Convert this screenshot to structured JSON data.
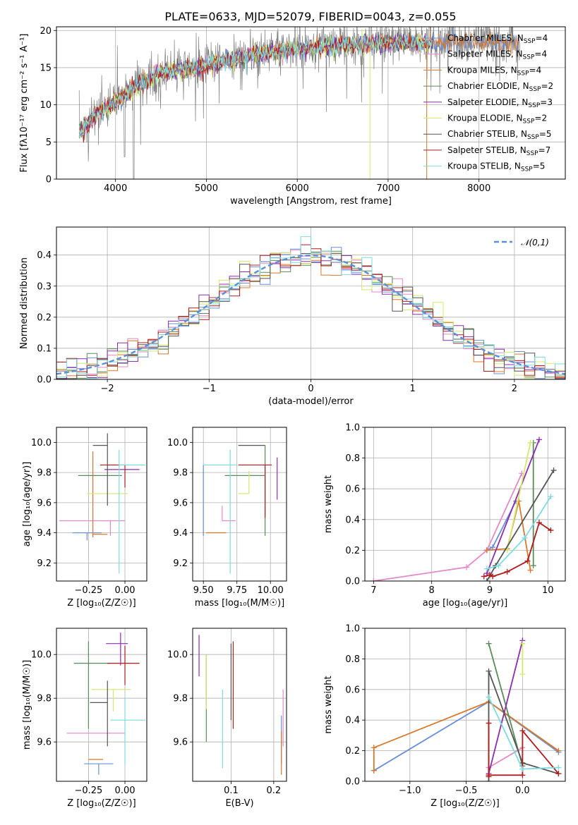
{
  "title": "PLATE=0633, MJD=52079, FIBERID=0043, z=0.055",
  "series_names": [
    "Chabrier MILES",
    "Salpeter MILES",
    "Kroupa MILES",
    "Chabrier ELODIE",
    "Salpeter ELODIE",
    "Kroupa ELODIE",
    "Chabrier STELIB",
    "Salpeter STELIB",
    "Kroupa STELIB"
  ],
  "n_ssp": [
    4,
    4,
    4,
    2,
    3,
    2,
    5,
    7,
    5
  ],
  "n_ssp_prefix": "N",
  "n_ssp_sub": "SSP",
  "colors": [
    "#6a8fd6",
    "#e58ac4",
    "#d9782b",
    "#5a8c5a",
    "#8c2cb0",
    "#d4e86a",
    "#555555",
    "#b01c1c",
    "#7ddbe0"
  ],
  "chart_data": [
    {
      "type": "line",
      "id": "spectrum",
      "xlabel": "wavelength [Angstrom, rest frame]",
      "ylabel": "Flux [fλ10⁻¹⁷ erg cm⁻² s⁻¹ A⁻¹]",
      "xlim": [
        3350,
        8950
      ],
      "ylim": [
        0,
        20.5
      ],
      "xticks": [
        4000,
        5000,
        6000,
        7000,
        8000
      ],
      "yticks": [
        0,
        5,
        10,
        15,
        20
      ],
      "x_range": [
        3600,
        8450
      ],
      "continuum": {
        "x": [
          3600,
          3800,
          4000,
          4200,
          4500,
          5000,
          5500,
          6000,
          6500,
          7000,
          7500,
          8000,
          8450
        ],
        "y": [
          6.5,
          9.0,
          10.5,
          12.5,
          14.5,
          15.5,
          16.8,
          17.7,
          18.2,
          18.5,
          18.5,
          18.6,
          18.7
        ]
      }
    },
    {
      "type": "step",
      "id": "residuals",
      "xlabel": "(data-model)/error",
      "ylabel": "Normed distribution",
      "xlim": [
        -2.5,
        2.5
      ],
      "ylim": [
        0,
        0.49
      ],
      "xticks": [
        -2,
        -1,
        0,
        1,
        2
      ],
      "yticks": [
        0.0,
        0.1,
        0.2,
        0.3,
        0.4
      ],
      "bins": {
        "start": -2.5,
        "width": 0.1
      },
      "legend": "𝒩(0,1)",
      "gaussian_color": "#5b8fd8"
    },
    {
      "type": "errorbar",
      "id": "age-vs-Z",
      "xlabel": "Z [log₁₀(Z/Z☉)]",
      "ylabel": "age  [log₁₀(age/yr)]",
      "xlim": [
        -0.47,
        0.15
      ],
      "ylim": [
        9.08,
        10.1
      ],
      "xticks": [
        -0.25,
        0.0
      ],
      "yticks": [
        9.2,
        9.4,
        9.6,
        9.8,
        10.0
      ],
      "points": [
        {
          "x": -0.26,
          "y": 9.4,
          "xerr": [
            0.1,
            0.1
          ],
          "yerr": [
            0.05,
            0.0
          ]
        },
        {
          "x": -0.1,
          "y": 9.48,
          "xerr": [
            0.35,
            0.1
          ],
          "yerr": [
            0.1,
            0.0
          ]
        },
        {
          "x": -0.22,
          "y": 9.39,
          "xerr": [
            0.0,
            0.1
          ],
          "yerr": [
            0.02,
            0.55
          ]
        },
        {
          "x": -0.22,
          "y": 9.78,
          "xerr": [
            0.1,
            0.2
          ],
          "yerr": [
            0.0,
            0.0
          ]
        },
        {
          "x": -0.02,
          "y": 9.82,
          "xerr": [
            0.12,
            0.12
          ],
          "yerr": [
            0.0,
            0.0
          ]
        },
        {
          "x": -0.08,
          "y": 9.66,
          "xerr": [
            0.18,
            0.1
          ],
          "yerr": [
            0.0,
            0.0
          ]
        },
        {
          "x": -0.12,
          "y": 9.98,
          "xerr": [
            0.1,
            0.0
          ],
          "yerr": [
            0.4,
            0.08
          ]
        },
        {
          "x": 0.0,
          "y": 9.85,
          "xerr": [
            0.17,
            0.0
          ],
          "yerr": [
            0.15,
            0.0
          ]
        },
        {
          "x": -0.04,
          "y": 9.85,
          "xerr": [
            0.0,
            0.18
          ],
          "yerr": [
            0.72,
            0.1
          ]
        }
      ]
    },
    {
      "type": "errorbar",
      "id": "age-vs-mass",
      "xlabel": "mass [log₁₀(M/M☉)]",
      "ylabel": "",
      "xlim": [
        9.42,
        10.12
      ],
      "ylim": [
        9.08,
        10.1
      ],
      "xticks": [
        9.5,
        9.75,
        10.0
      ],
      "yticks": [
        9.2,
        9.4,
        9.6,
        9.8,
        10.0
      ],
      "points": [
        {
          "x": 9.5,
          "y": 9.4,
          "xerr": [
            0.0,
            0.0
          ],
          "yerr": [
            0.02,
            0.45
          ]
        },
        {
          "x": 9.64,
          "y": 9.48,
          "xerr": [
            0.0,
            0.1
          ],
          "yerr": [
            0.0,
            0.1
          ]
        },
        {
          "x": 9.52,
          "y": 9.4,
          "xerr": [
            0.0,
            0.15
          ],
          "yerr": [
            0.0,
            0.0
          ]
        },
        {
          "x": 9.96,
          "y": 9.78,
          "xerr": [
            0.3,
            0.0
          ],
          "yerr": [
            0.4,
            0.2
          ]
        },
        {
          "x": 10.05,
          "y": 9.82,
          "xerr": [
            0.0,
            0.0
          ],
          "yerr": [
            0.2,
            0.08
          ]
        },
        {
          "x": 9.84,
          "y": 9.66,
          "xerr": [
            0.08,
            0.0
          ],
          "yerr": [
            0.0,
            0.15
          ]
        },
        {
          "x": 9.96,
          "y": 9.98,
          "xerr": [
            0.2,
            0.0
          ],
          "yerr": [
            0.0,
            0.0
          ]
        },
        {
          "x": 9.96,
          "y": 9.85,
          "xerr": [
            0.2,
            0.05
          ],
          "yerr": [
            0.35,
            0.0
          ]
        },
        {
          "x": 9.7,
          "y": 9.85,
          "xerr": [
            0.2,
            0.05
          ],
          "yerr": [
            0.72,
            0.1
          ]
        }
      ]
    },
    {
      "type": "line",
      "id": "massweight-vs-age",
      "xlabel": "age  [log₁₀(age/yr)]",
      "ylabel": "mass weight",
      "xlim": [
        6.85,
        10.3
      ],
      "ylim": [
        0,
        1.0
      ],
      "xticks": [
        7,
        8,
        9,
        10
      ],
      "yticks": [
        0.0,
        0.2,
        0.4,
        0.6,
        0.8,
        1.0
      ],
      "series": [
        {
          "x": [
            8.95,
            9.05,
            9.45
          ],
          "y": [
            0.2,
            0.22,
            0.52
          ]
        },
        {
          "x": 7.0,
          "x_list": [
            7.0,
            8.6,
            8.95,
            9.55
          ],
          "y": [
            0.0,
            0.09,
            0.2,
            0.7
          ]
        },
        {
          "x": [
            8.95,
            9.3,
            9.5,
            9.7
          ],
          "y": [
            0.2,
            0.21,
            0.52,
            0.07
          ]
        },
        {
          "x": [
            9.75,
            9.75
          ],
          "y": [
            0.1,
            0.9
          ]
        },
        {
          "x": [
            8.95,
            9.85
          ],
          "y": [
            0.05,
            0.92
          ]
        },
        {
          "x": [
            9.3,
            9.7
          ],
          "y": [
            0.2,
            0.9
          ]
        },
        {
          "x": [
            8.95,
            9.1,
            10.1
          ],
          "y": [
            0.0,
            0.1,
            0.72
          ]
        },
        {
          "x": [
            8.9,
            9.0,
            9.05,
            9.3,
            9.65,
            9.85,
            10.05
          ],
          "y": [
            0.03,
            0.04,
            0.03,
            0.06,
            0.13,
            0.38,
            0.33
          ]
        },
        {
          "x": [
            8.95,
            9.15,
            9.6,
            10.05
          ],
          "y": [
            0.08,
            0.1,
            0.28,
            0.55
          ]
        }
      ]
    },
    {
      "type": "errorbar",
      "id": "mass-vs-Z",
      "xlabel": "Z [log₁₀(Z/Z☉)]",
      "ylabel": "mass [log₁₀(M/M☉)]",
      "xlim": [
        -0.47,
        0.15
      ],
      "ylim": [
        9.42,
        10.12
      ],
      "xticks": [
        -0.25,
        0.0
      ],
      "yticks": [
        9.6,
        9.8,
        10.0
      ],
      "points": [
        {
          "x": -0.18,
          "y": 9.5,
          "xerr": [
            0.1,
            0.1
          ],
          "yerr": [
            0.05,
            0.0
          ]
        },
        {
          "x": -0.1,
          "y": 9.64,
          "xerr": [
            0.3,
            0.1
          ],
          "yerr": [
            0.0,
            0.0
          ]
        },
        {
          "x": -0.25,
          "y": 9.52,
          "xerr": [
            0.0,
            0.1
          ],
          "yerr": [
            0.0,
            0.0
          ]
        },
        {
          "x": -0.25,
          "y": 9.96,
          "xerr": [
            0.1,
            0.15
          ],
          "yerr": [
            0.3,
            0.1
          ]
        },
        {
          "x": -0.03,
          "y": 10.05,
          "xerr": [
            0.1,
            0.05
          ],
          "yerr": [
            0.1,
            0.05
          ]
        },
        {
          "x": -0.08,
          "y": 9.84,
          "xerr": [
            0.15,
            0.12
          ],
          "yerr": [
            0.1,
            0.0
          ]
        },
        {
          "x": -0.12,
          "y": 9.78,
          "xerr": [
            0.12,
            0.0
          ],
          "yerr": [
            0.2,
            0.1
          ]
        },
        {
          "x": 0.0,
          "y": 9.96,
          "xerr": [
            0.12,
            0.1
          ],
          "yerr": [
            0.1,
            0.08
          ]
        },
        {
          "x": 0.0,
          "y": 9.7,
          "xerr": [
            0.1,
            0.14
          ],
          "yerr": [
            0.2,
            0.1
          ]
        }
      ]
    },
    {
      "type": "errorbar",
      "id": "mass-vs-ebv",
      "xlabel": "E(B-V)",
      "ylabel": "",
      "xlim": [
        0.01,
        0.23
      ],
      "ylim": [
        9.42,
        10.12
      ],
      "xticks": [
        0.1,
        0.2
      ],
      "yticks": [
        9.6,
        9.8,
        10.0
      ],
      "points": [
        {
          "x": 0.218,
          "y": 9.6,
          "xerr": [
            0,
            0
          ],
          "yerr": [
            0.1,
            0.12
          ]
        },
        {
          "x": 0.222,
          "y": 9.7,
          "xerr": [
            0,
            0
          ],
          "yerr": [
            0.12,
            0.14
          ]
        },
        {
          "x": 0.218,
          "y": 9.55,
          "xerr": [
            0,
            0
          ],
          "yerr": [
            0.1,
            0.1
          ]
        },
        {
          "x": 0.042,
          "y": 9.8,
          "xerr": [
            0,
            0
          ],
          "yerr": [
            0.2,
            0.2
          ]
        },
        {
          "x": 0.025,
          "y": 10.0,
          "xerr": [
            0,
            0
          ],
          "yerr": [
            0.1,
            0.09
          ]
        },
        {
          "x": 0.042,
          "y": 9.9,
          "xerr": [
            0,
            0
          ],
          "yerr": [
            0.15,
            0.1
          ]
        },
        {
          "x": 0.1,
          "y": 9.9,
          "xerr": [
            0,
            0
          ],
          "yerr": [
            0.2,
            0.15
          ]
        },
        {
          "x": 0.105,
          "y": 9.86,
          "xerr": [
            0,
            0
          ],
          "yerr": [
            0.2,
            0.2
          ]
        },
        {
          "x": 0.08,
          "y": 9.66,
          "xerr": [
            0,
            0
          ],
          "yerr": [
            0.18,
            0.18
          ]
        }
      ]
    },
    {
      "type": "line",
      "id": "massweight-vs-Z",
      "xlabel": "Z [log₁₀(Z/Z☉)]",
      "ylabel": "mass weight",
      "xlim": [
        -1.4,
        0.38
      ],
      "ylim": [
        0,
        1.0
      ],
      "xticks": [
        -1.0,
        -0.5,
        0.0
      ],
      "yticks": [
        0.0,
        0.2,
        0.4,
        0.6,
        0.8,
        1.0
      ],
      "series": [
        {
          "x": [
            -1.32,
            -0.3,
            0.32
          ],
          "y": [
            0.07,
            0.52,
            0.19
          ]
        },
        {
          "x": [
            -0.3,
            0.0
          ],
          "y": [
            0.09,
            0.22
          ]
        },
        {
          "x": [
            -1.32,
            -1.32,
            -0.3,
            0.32
          ],
          "y": [
            0.07,
            0.22,
            0.52,
            0.2
          ]
        },
        {
          "x": [
            -0.3,
            0.0
          ],
          "y": [
            0.9,
            0.1
          ]
        },
        {
          "x": [
            -0.3,
            0.0
          ],
          "y": [
            0.05,
            0.92
          ]
        },
        {
          "x": [
            0.0,
            0.0
          ],
          "y": [
            0.7,
            0.9
          ]
        },
        {
          "x": [
            -0.3,
            -0.3,
            0.0,
            0.32
          ],
          "y": [
            0.0,
            0.72,
            0.12,
            0.05
          ]
        },
        {
          "x": [
            -0.3,
            -0.3,
            -0.3,
            0.0,
            0.0,
            0.32
          ],
          "y": [
            0.03,
            0.38,
            0.04,
            0.04,
            0.33,
            0.05
          ]
        },
        {
          "x": [
            -0.3,
            0.0,
            0.32
          ],
          "y": [
            0.55,
            0.08,
            0.09
          ]
        }
      ]
    }
  ]
}
